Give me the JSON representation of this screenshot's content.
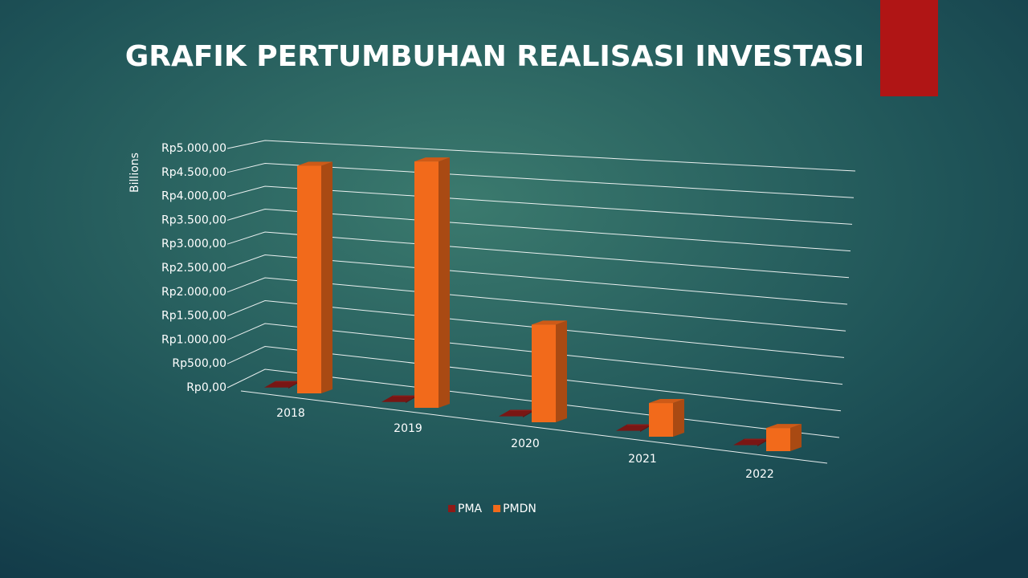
{
  "chart_data": {
    "type": "bar3d",
    "title": "GRAFIK PERTUMBUHAN REALISASI INVESTASI",
    "y_label": "Billions",
    "categories": [
      "2018",
      "2019",
      "2020",
      "2021",
      "2022"
    ],
    "series": [
      {
        "name": "PMA",
        "color": "#8e1a17",
        "values": [
          20,
          20,
          20,
          20,
          20
        ]
      },
      {
        "name": "PMDN",
        "color": "#f26a1b",
        "values": [
          4500,
          4700,
          1800,
          600,
          400
        ]
      }
    ],
    "ylim": [
      0,
      5000
    ],
    "yticks": [
      {
        "value": 0,
        "label": "Rp0,00"
      },
      {
        "value": 500,
        "label": "Rp500,00"
      },
      {
        "value": 1000,
        "label": "Rp1.000,00"
      },
      {
        "value": 1500,
        "label": "Rp1.500,00"
      },
      {
        "value": 2000,
        "label": "Rp2.000,00"
      },
      {
        "value": 2500,
        "label": "Rp2.500,00"
      },
      {
        "value": 3000,
        "label": "Rp3.000,00"
      },
      {
        "value": 3500,
        "label": "Rp3.500,00"
      },
      {
        "value": 4000,
        "label": "Rp4.000,00"
      },
      {
        "value": 4500,
        "label": "Rp4.500,00"
      },
      {
        "value": 5000,
        "label": "Rp5.000,00"
      }
    ],
    "grid": true,
    "legend": "bottom"
  }
}
